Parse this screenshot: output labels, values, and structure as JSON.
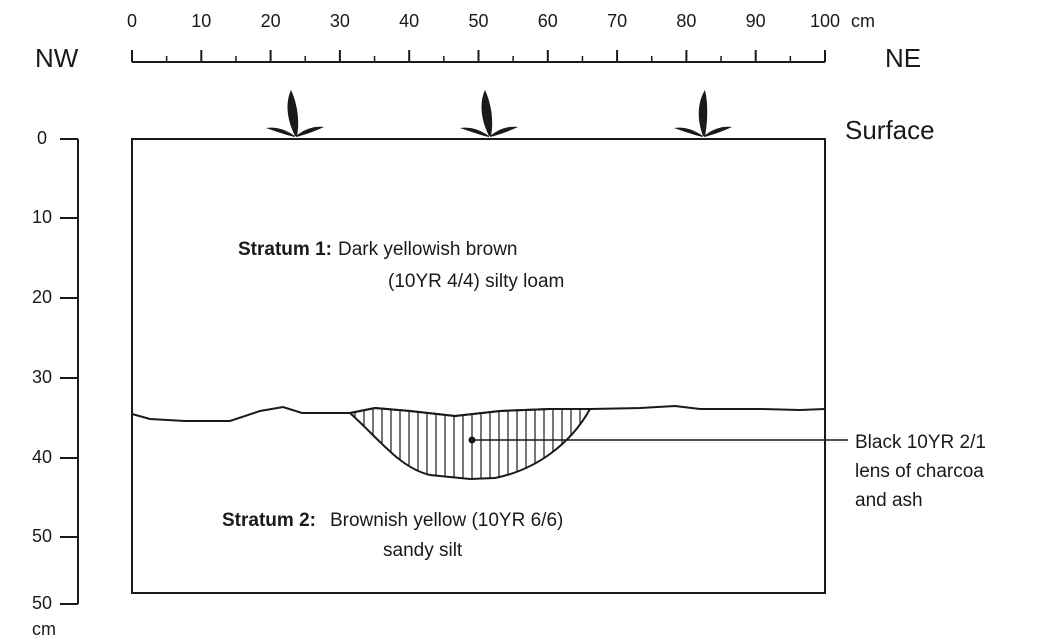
{
  "header": {
    "left": "NW",
    "right": "NE",
    "surface": "Surface"
  },
  "horizontal_scale": {
    "ticks": [
      0,
      10,
      20,
      30,
      40,
      50,
      60,
      70,
      80,
      90,
      100
    ],
    "unit": "cm"
  },
  "vertical_scale": {
    "labels": [
      "0",
      "10",
      "20",
      "30",
      "40",
      "50",
      "50"
    ],
    "unit": "cm"
  },
  "strata": [
    {
      "name": "Stratum 1:",
      "lines": [
        "Dark yellowish brown",
        "(10YR 4/4) silty loam"
      ]
    },
    {
      "name": "Stratum 2:",
      "lines": [
        "Brownish yellow (10YR 6/6)",
        "sandy silt"
      ]
    }
  ],
  "lens_label": [
    "Black 10YR 2/1",
    "lens of charcoa",
    "and ash"
  ]
}
